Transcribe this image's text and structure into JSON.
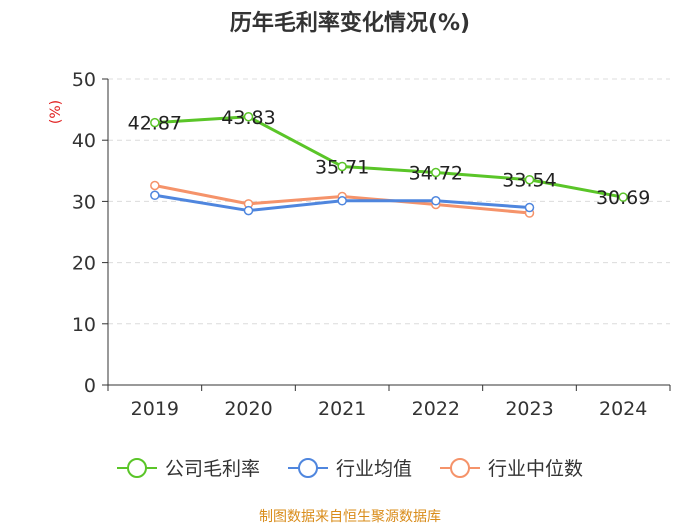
{
  "chart_data": {
    "type": "line",
    "title": "历年毛利率变化情况(%)",
    "ylabel": "(%)",
    "xlabel": "",
    "categories": [
      "2019",
      "2020",
      "2021",
      "2022",
      "2023",
      "2024"
    ],
    "ylim": [
      0,
      50
    ],
    "yticks": [
      0,
      10,
      20,
      30,
      40,
      50
    ],
    "grid": true,
    "legend_position": "bottom",
    "series": [
      {
        "name": "公司毛利率",
        "color": "#5ac528",
        "values": [
          42.87,
          43.83,
          35.71,
          34.72,
          33.54,
          30.69
        ],
        "labels": [
          "42.87",
          "43.83",
          "35.71",
          "34.72",
          "33.54",
          "30.69"
        ],
        "show_labels": true
      },
      {
        "name": "行业均值",
        "color": "#4f86de",
        "values": [
          31.0,
          28.5,
          30.1,
          30.1,
          29.0,
          null
        ],
        "show_labels": false
      },
      {
        "name": "行业中位数",
        "color": "#f5936a",
        "values": [
          32.6,
          29.6,
          30.8,
          29.5,
          28.1,
          null
        ],
        "show_labels": false
      }
    ],
    "source": "制图数据来自恒生聚源数据库"
  }
}
